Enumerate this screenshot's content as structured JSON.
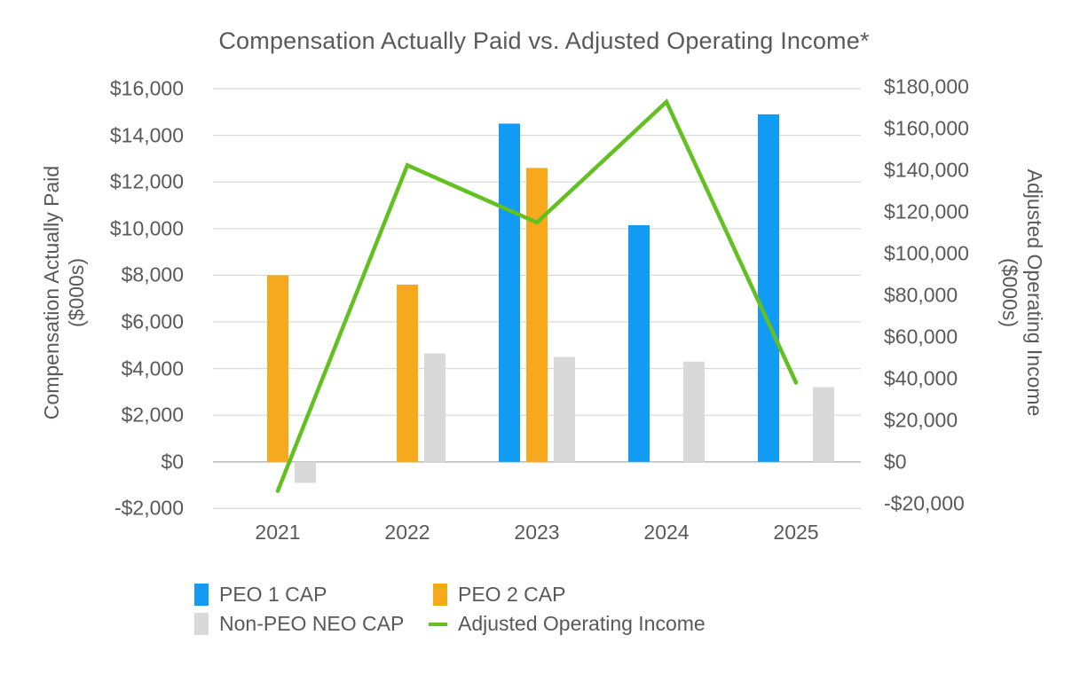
{
  "title": "Compensation Actually Paid vs. Adjusted Operating Income*",
  "left_axis": {
    "title_line1": "Compensation Actually Paid",
    "title_line2": "($000s)",
    "ticks": [
      "$16,000",
      "$14,000",
      "$12,000",
      "$10,000",
      "$8,000",
      "$6,000",
      "$4,000",
      "$2,000",
      "$0",
      "-$2,000"
    ]
  },
  "right_axis": {
    "title_line1": "Adjusted Operating Income",
    "title_line2": "($000s)",
    "ticks": [
      "$180,000",
      "$160,000",
      "$140,000",
      "$120,000",
      "$100,000",
      "$80,000",
      "$60,000",
      "$40,000",
      "$20,000",
      "$0",
      "-$20,000"
    ]
  },
  "legend": {
    "items": [
      {
        "label": "PEO 1 CAP",
        "swatch": "square",
        "color": "#119BF2"
      },
      {
        "label": "PEO 2 CAP",
        "swatch": "square",
        "color": "#F7A91E"
      },
      {
        "label": "Non-PEO NEO CAP",
        "swatch": "square",
        "color": "#D9D9D9"
      },
      {
        "label": "Adjusted Operating Income",
        "swatch": "line",
        "color": "#62C120"
      }
    ]
  },
  "colors": {
    "peo1_bar": "#119BF2",
    "peo2_bar": "#F7A91E",
    "non_peo_bar": "#D9D9D9",
    "aoi_line": "#62C120",
    "text": "#595959",
    "gridline": "#D9D9D9",
    "zero_axis_line": "#BFBFBF",
    "background": "#FFFFFF"
  },
  "chart_data": {
    "type": "combo",
    "title": "Compensation Actually Paid vs. Adjusted Operating Income*",
    "categories": [
      "2021",
      "2022",
      "2023",
      "2024",
      "2025"
    ],
    "series": [
      {
        "name": "PEO 1 CAP",
        "type": "bar",
        "axis": "left",
        "color": "#119BF2",
        "values": [
          null,
          null,
          14500,
          10150,
          14900
        ]
      },
      {
        "name": "PEO 2 CAP",
        "type": "bar",
        "axis": "left",
        "color": "#F7A91E",
        "values": [
          8000,
          7600,
          12600,
          null,
          null
        ]
      },
      {
        "name": "Non-PEO NEO CAP",
        "type": "bar",
        "axis": "left",
        "color": "#D9D9D9",
        "values": [
          -900,
          4650,
          4500,
          4300,
          3200
        ]
      },
      {
        "name": "Adjusted Operating Income",
        "type": "line",
        "axis": "right",
        "color": "#62C120",
        "values": [
          -14000,
          142500,
          115000,
          173000,
          38000
        ]
      }
    ],
    "left_ylabel": "Compensation Actually Paid ($000s)",
    "right_ylabel": "Adjusted Operating Income ($000s)",
    "left_ylim": [
      -2000,
      16000
    ],
    "left_tick_step": 2000,
    "right_ylim": [
      -20000,
      180000
    ],
    "right_tick_step": 20000,
    "grid": true,
    "legend_position": "bottom"
  }
}
